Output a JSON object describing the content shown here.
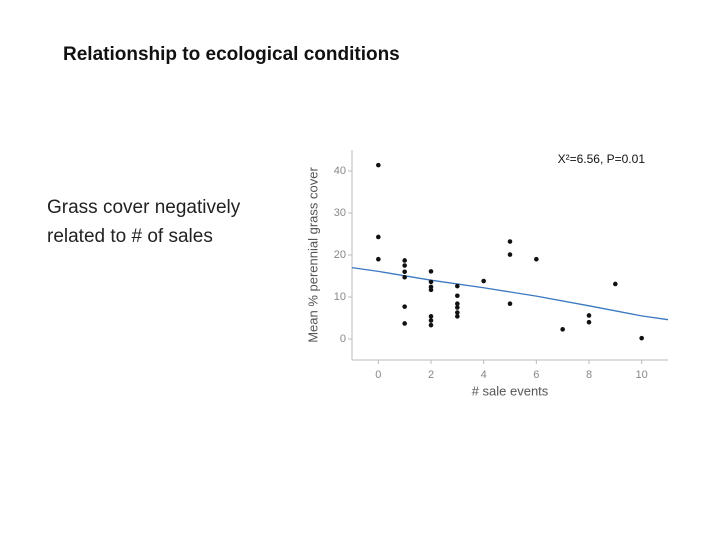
{
  "slide": {
    "title": "Relationship to ecological conditions",
    "text": [
      "Grass cover negatively",
      "related to # of sales"
    ]
  },
  "chart_data": {
    "type": "scatter",
    "annotation": "X²=6.56, P=0.01",
    "x_label": "# sale events",
    "y_label": "Mean % perennial grass cover",
    "color": "#111111",
    "x": [
      0,
      0,
      0,
      1,
      1,
      1,
      1,
      1,
      1,
      2,
      2,
      2,
      2,
      2,
      2,
      2,
      3,
      3,
      3,
      3,
      3,
      3,
      4,
      5,
      5,
      5,
      6,
      7,
      8,
      8,
      9,
      10
    ],
    "values": [
      41.4,
      24.3,
      19,
      18.7,
      17.5,
      16,
      14.7,
      7.7,
      3.7,
      16.1,
      13.6,
      12.4,
      11.7,
      5.4,
      4.4,
      3.3,
      12.6,
      10.3,
      8.4,
      7.5,
      6.3,
      5.4,
      13.8,
      23.2,
      20.1,
      8.4,
      19,
      2.3,
      5.6,
      4,
      13.1,
      0.2
    ],
    "fit": {
      "color": "#3b78c0",
      "x": [
        -1,
        0,
        2,
        4,
        6,
        8,
        10,
        11
      ],
      "values": [
        17,
        16.1,
        14,
        12.2,
        10.2,
        7.9,
        5.5,
        4.6
      ]
    },
    "xlim": [
      -1,
      11
    ],
    "xticks": [
      0,
      2,
      4,
      6,
      8,
      10
    ],
    "ylim": [
      -5,
      45
    ],
    "yticks": [
      0,
      10,
      20,
      30,
      40
    ]
  }
}
